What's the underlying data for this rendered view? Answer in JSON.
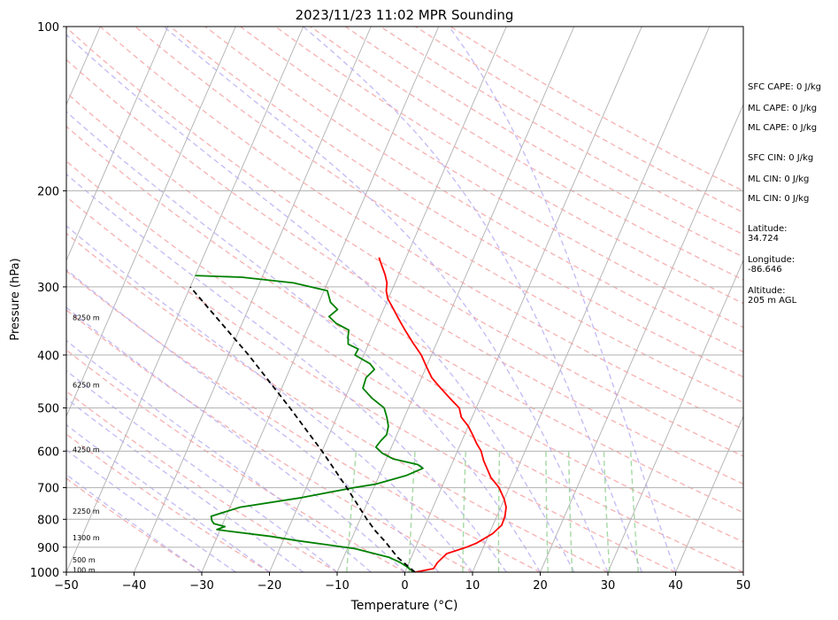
{
  "chart_data": {
    "type": "line",
    "title": "2023/11/23 11:02 MPR Sounding",
    "xlabel": "Temperature (°C)",
    "ylabel": "Pressure (hPa)",
    "xlim": [
      -50,
      50
    ],
    "ylim": [
      1000,
      100
    ],
    "y_scale": "log",
    "grid": true,
    "x_ticks": [
      -50,
      -40,
      -30,
      -20,
      -10,
      0,
      10,
      20,
      30,
      40,
      50
    ],
    "y_ticks": [
      1000,
      900,
      800,
      700,
      600,
      500,
      400,
      300,
      200,
      100
    ],
    "series": [
      {
        "color": "#ff0000",
        "points": [
          [
            1.5,
            1000
          ],
          [
            4,
            985
          ],
          [
            4.2,
            960
          ],
          [
            5,
            925
          ],
          [
            7.5,
            900
          ],
          [
            8.7,
            885
          ],
          [
            10.5,
            850
          ],
          [
            11.3,
            820
          ],
          [
            11.2,
            790
          ],
          [
            10.8,
            760
          ],
          [
            10,
            735
          ],
          [
            8.5,
            700
          ],
          [
            6.6,
            670
          ],
          [
            5.7,
            650
          ],
          [
            4.5,
            625
          ],
          [
            3.5,
            600
          ],
          [
            2.3,
            580
          ],
          [
            1.2,
            560
          ],
          [
            0,
            540
          ],
          [
            -1.6,
            520
          ],
          [
            -2.5,
            500
          ],
          [
            -4.5,
            480
          ],
          [
            -6.5,
            460
          ],
          [
            -8.5,
            440
          ],
          [
            -10,
            420
          ],
          [
            -11.5,
            400
          ],
          [
            -13.5,
            380
          ],
          [
            -15.5,
            360
          ],
          [
            -17,
            345
          ],
          [
            -18.5,
            330
          ],
          [
            -20.1,
            315
          ],
          [
            -20.8,
            305
          ],
          [
            -21.2,
            295
          ],
          [
            -22,
            285
          ],
          [
            -23,
            275
          ],
          [
            -24,
            265
          ]
        ]
      },
      {
        "color": "#008000",
        "points": [
          [
            1.3,
            1000
          ],
          [
            0,
            978
          ],
          [
            -1.3,
            960
          ],
          [
            -3.2,
            940
          ],
          [
            -9,
            905
          ],
          [
            -18,
            875
          ],
          [
            -22,
            860
          ],
          [
            -29,
            840
          ],
          [
            -30.5,
            835
          ],
          [
            -29.5,
            825
          ],
          [
            -31.3,
            815
          ],
          [
            -31.8,
            805
          ],
          [
            -32.2,
            790
          ],
          [
            -28.5,
            760
          ],
          [
            -20,
            730
          ],
          [
            -13,
            700
          ],
          [
            -10,
            690
          ],
          [
            -6,
            665
          ],
          [
            -4,
            645
          ],
          [
            -5,
            635
          ],
          [
            -9,
            620
          ],
          [
            -11,
            605
          ],
          [
            -12.3,
            590
          ],
          [
            -12,
            575
          ],
          [
            -11.5,
            560
          ],
          [
            -11.8,
            540
          ],
          [
            -12.6,
            520
          ],
          [
            -13.6,
            500
          ],
          [
            -16,
            480
          ],
          [
            -18,
            460
          ],
          [
            -18.2,
            440
          ],
          [
            -17.5,
            425
          ],
          [
            -18.5,
            415
          ],
          [
            -21.3,
            400
          ],
          [
            -21.2,
            390
          ],
          [
            -23,
            382
          ],
          [
            -23.5,
            370
          ],
          [
            -23.8,
            360
          ],
          [
            -26.1,
            350
          ],
          [
            -27.6,
            340
          ],
          [
            -26.8,
            330
          ],
          [
            -28.3,
            320
          ],
          [
            -29.5,
            305
          ],
          [
            -35,
            295
          ],
          [
            -43,
            288
          ],
          [
            -50,
            286
          ]
        ]
      },
      {
        "color": "#000000",
        "dash": "6,4",
        "points": [
          [
            1.5,
            1000
          ],
          [
            -2,
            940
          ],
          [
            -4.8,
            880
          ],
          [
            -7,
            840
          ],
          [
            -9,
            800
          ],
          [
            -14,
            700
          ],
          [
            -20,
            600
          ],
          [
            -27.5,
            500
          ],
          [
            -37,
            400
          ],
          [
            -50,
            300
          ]
        ]
      }
    ],
    "height_labels": [
      {
        "label": "100 m",
        "p": 995
      },
      {
        "label": "500 m",
        "p": 952
      },
      {
        "label": "1300 m",
        "p": 868
      },
      {
        "label": "2250 m",
        "p": 775
      },
      {
        "label": "4250 m",
        "p": 598
      },
      {
        "label": "6250 m",
        "p": 455
      },
      {
        "label": "8250 m",
        "p": 343
      }
    ]
  },
  "indices": [
    "SFC CAPE: 0 J/kg",
    "ML CAPE: 0 J/kg",
    "ML CAPE: 0 J/kg",
    "SFC CIN: 0 J/kg",
    "ML CIN: 0 J/kg",
    "ML CIN: 0 J/kg"
  ],
  "location": {
    "latitude": "Latitude:\n34.724",
    "longitude": "Longitude:\n-86.646",
    "altitude": "Altitude:\n205 m AGL"
  }
}
